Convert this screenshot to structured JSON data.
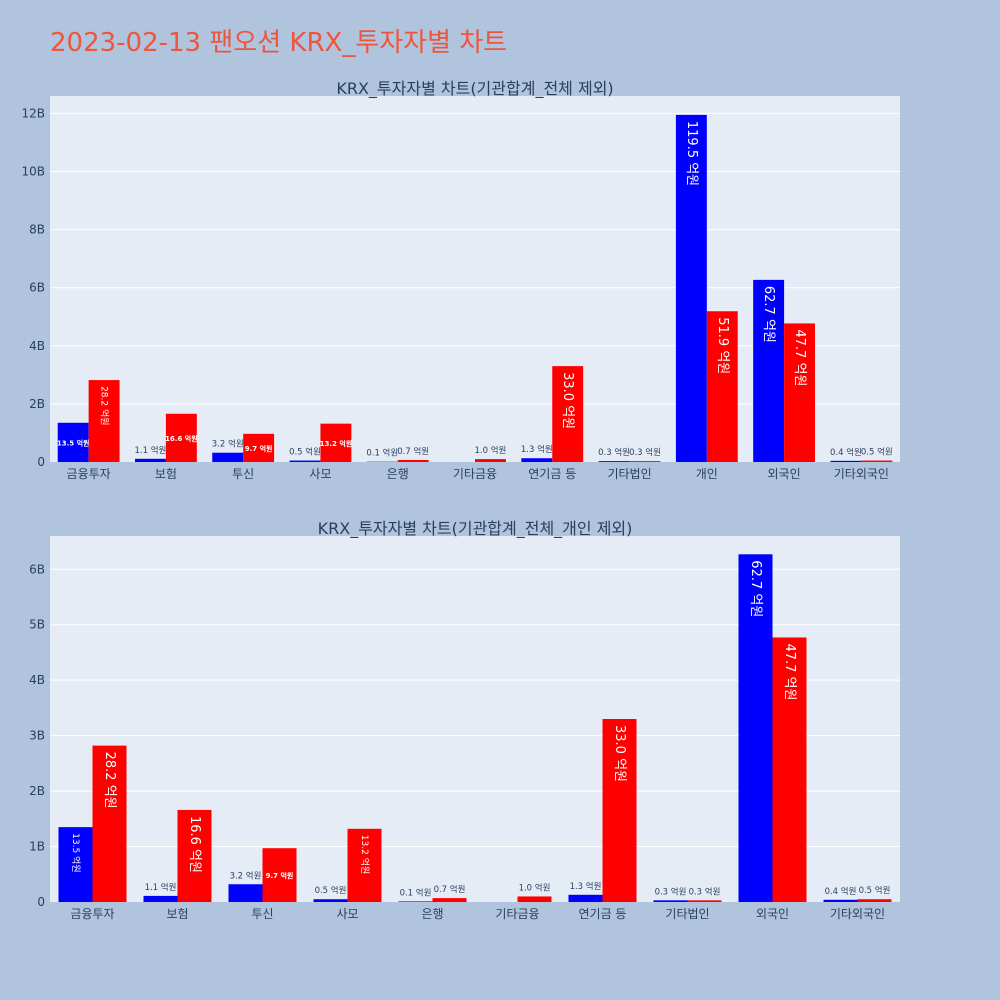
{
  "page": {
    "title": "2023-02-13 팬오션 KRX_투자자별 차트"
  },
  "style": {
    "page_bg": "#b0c4de",
    "plot_bg": "#e5ecf6",
    "title_color": "#ef553b",
    "series_1_color": "#0000ff",
    "series_2_color": "#ff0000"
  },
  "chart_data": [
    {
      "type": "bar",
      "title": "KRX_투자자별 차트(기관합계_전체 제외)",
      "categories": [
        "금융투자",
        "보험",
        "투신",
        "사모",
        "은행",
        "기타금융",
        "연기금 등",
        "기타법인",
        "개인",
        "외국인",
        "기타외국인"
      ],
      "series": [
        {
          "color": "#0000ff",
          "values": [
            1350000000,
            110000000,
            320000000,
            50000000,
            10000000,
            0,
            130000000,
            30000000,
            11950000000,
            6270000000,
            40000000
          ],
          "labels": [
            "13.5 억원",
            "1.1 억원",
            "3.2 억원",
            "0.5 억원",
            "0.1 억원",
            "",
            "1.3 억원",
            "0.3 억원",
            "119.5 억원",
            "62.7 억원",
            "0.4 억원"
          ]
        },
        {
          "color": "#ff0000",
          "values": [
            2820000000,
            1660000000,
            970000000,
            1320000000,
            70000000,
            100000000,
            3300000000,
            30000000,
            5190000000,
            4770000000,
            50000000
          ],
          "labels": [
            "28.2 억원",
            "16.6 억원",
            "9.7 억원",
            "13.2 억원",
            "0.7 억원",
            "1.0 억원",
            "33.0 억원",
            "0.3 억원",
            "51.9 억원",
            "47.7 억원",
            "0.5 억원"
          ]
        }
      ],
      "yticks": [
        0,
        2000000000,
        4000000000,
        6000000000,
        8000000000,
        10000000000,
        12000000000
      ],
      "ytick_labels": [
        "0",
        "2B",
        "4B",
        "6B",
        "8B",
        "10B",
        "12B"
      ],
      "ylim": [
        0,
        12600000000
      ],
      "grid": true,
      "legend": "none"
    },
    {
      "type": "bar",
      "title": "KRX_투자자별 차트(기관합계_전체_개인 제외)",
      "categories": [
        "금융투자",
        "보험",
        "투신",
        "사모",
        "은행",
        "기타금융",
        "연기금 등",
        "기타법인",
        "외국인",
        "기타외국인"
      ],
      "series": [
        {
          "color": "#0000ff",
          "values": [
            1350000000,
            110000000,
            320000000,
            50000000,
            10000000,
            0,
            130000000,
            30000000,
            6270000000,
            40000000
          ],
          "labels": [
            "13.5 억원",
            "1.1 억원",
            "3.2 억원",
            "0.5 억원",
            "0.1 억원",
            "",
            "1.3 억원",
            "0.3 억원",
            "62.7 억원",
            "0.4 억원"
          ]
        },
        {
          "color": "#ff0000",
          "values": [
            2820000000,
            1660000000,
            970000000,
            1320000000,
            70000000,
            100000000,
            3300000000,
            30000000,
            4770000000,
            50000000
          ],
          "labels": [
            "28.2 억원",
            "16.6 억원",
            "9.7 억원",
            "13.2 억원",
            "0.7 억원",
            "1.0 억원",
            "33.0 억원",
            "0.3 억원",
            "47.7 억원",
            "0.5 억원"
          ]
        }
      ],
      "yticks": [
        0,
        1000000000,
        2000000000,
        3000000000,
        4000000000,
        5000000000,
        6000000000
      ],
      "ytick_labels": [
        "0",
        "1B",
        "2B",
        "3B",
        "4B",
        "5B",
        "6B"
      ],
      "ylim": [
        0,
        6600000000
      ],
      "grid": true,
      "legend": "none"
    }
  ]
}
